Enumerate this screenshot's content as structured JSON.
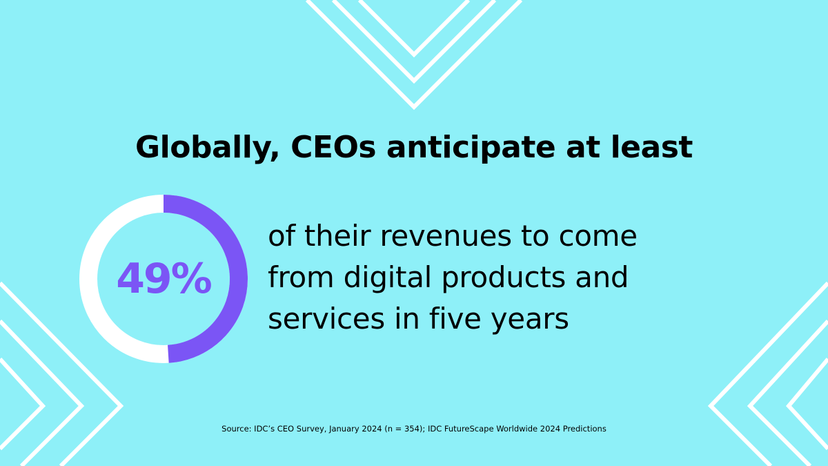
{
  "title": "Globally, CEOs anticipate at least",
  "body_lines": [
    "of their revenues to come",
    "from digital products and",
    "services in five years"
  ],
  "source": "Source: IDC’s CEO Survey, January 2024 (n = 354); IDC FutureScape Worldwide 2024 Predictions",
  "colors": {
    "background": "#8ef0f8",
    "accent": "#7b55f5",
    "ring_remainder": "#ffffff",
    "chevron": "#ffffff",
    "text": "#000000"
  },
  "chart_data": {
    "type": "pie",
    "style": "donut",
    "slices": [
      {
        "value": 49
      },
      {
        "value": 51
      }
    ],
    "center_label": "49%"
  }
}
